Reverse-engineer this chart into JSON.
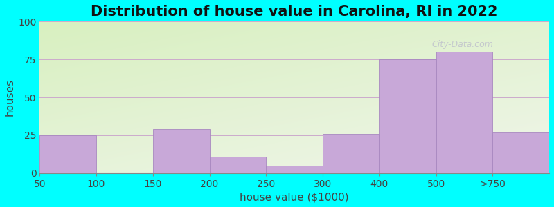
{
  "title": "Distribution of house value in Carolina, RI in 2022",
  "xlabel": "house value ($1000)",
  "ylabel": "houses",
  "tick_labels": [
    "50",
    "100",
    "150",
    "200",
    "250",
    "300",
    "400",
    "500",
    ">750"
  ],
  "values": [
    25,
    0,
    29,
    11,
    5,
    26,
    75,
    80,
    27
  ],
  "bar_color": "#c8a8d8",
  "bar_edgecolor": "#a888c0",
  "background_color": "#00FFFF",
  "ylim": [
    0,
    100
  ],
  "yticks": [
    0,
    25,
    50,
    75,
    100
  ],
  "title_fontsize": 15,
  "axis_fontsize": 11,
  "tick_fontsize": 10,
  "watermark": "City-Data.com",
  "grid_color": "#ccaacc",
  "gradient_top": "#d8f0c0",
  "gradient_bottom": "#f0f8e8",
  "gradient_right": "#e8f0e0"
}
